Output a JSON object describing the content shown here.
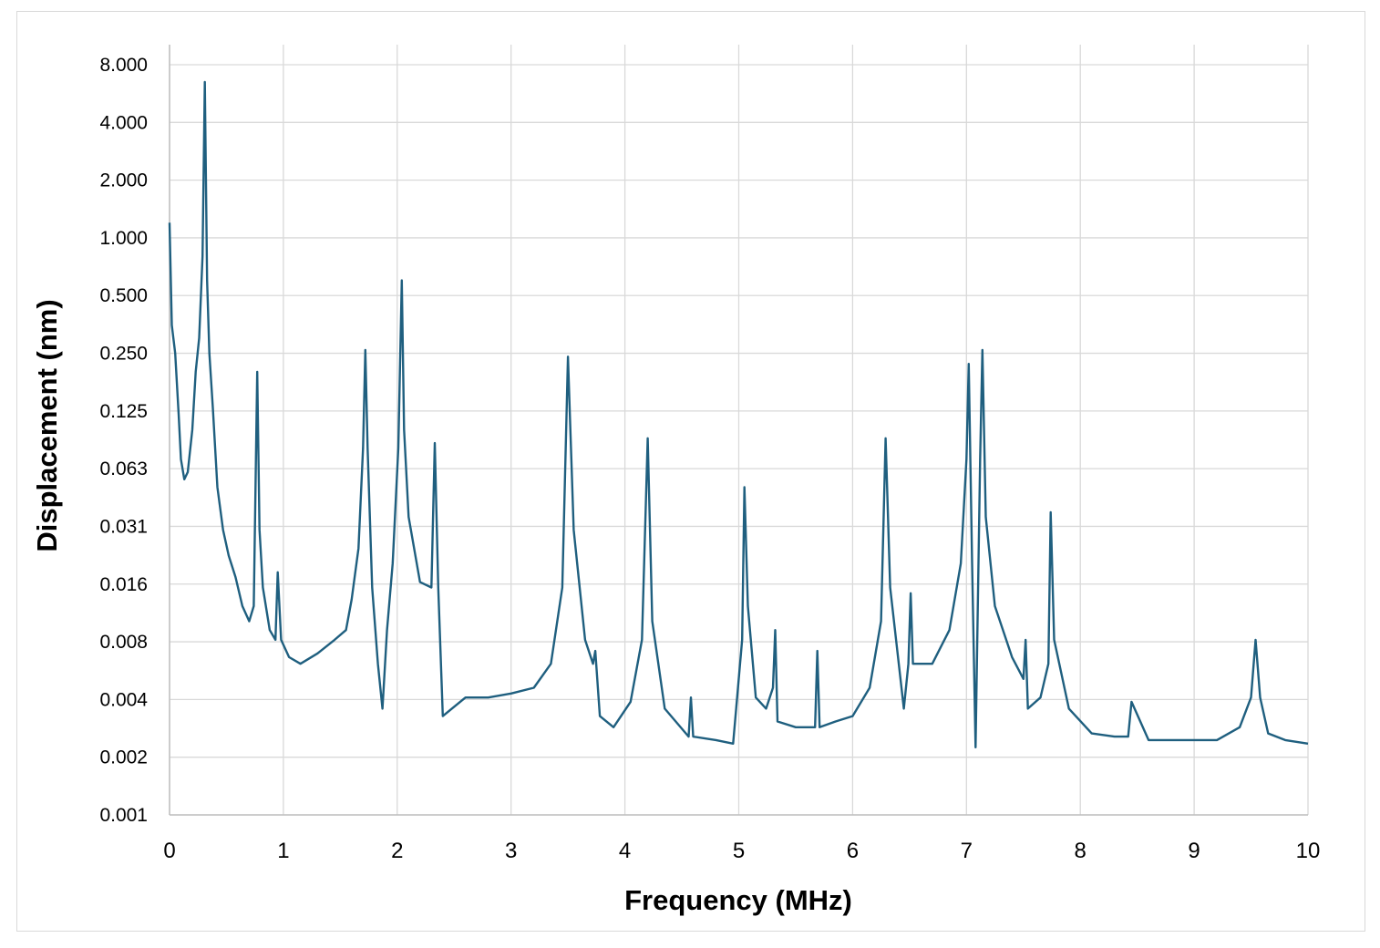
{
  "chart_data": {
    "type": "line",
    "title": "",
    "xlabel": "Frequency (MHz)",
    "ylabel": "Displacement (nm)",
    "x_scale": "linear",
    "y_scale": "log2",
    "xlim": [
      0,
      10
    ],
    "ylim": [
      0.001,
      8.0
    ],
    "x_ticks": [
      "0",
      "1",
      "2",
      "3",
      "4",
      "5",
      "6",
      "7",
      "8",
      "9",
      "10"
    ],
    "y_ticks": [
      "8.000",
      "4.000",
      "2.000",
      "1.000",
      "0.500",
      "0.250",
      "0.125",
      "0.063",
      "0.031",
      "0.016",
      "0.008",
      "0.004",
      "0.002",
      "0.001"
    ],
    "y_tick_values": [
      8.0,
      4.0,
      2.0,
      1.0,
      0.5,
      0.25,
      0.125,
      0.0625,
      0.03125,
      0.015625,
      0.0078125,
      0.00390625,
      0.001953125,
      0.0009765625
    ],
    "grid": true,
    "legend": "none",
    "line_color": "#1f5f7f",
    "series": [
      {
        "name": "",
        "x": [
          0.0,
          0.02,
          0.05,
          0.08,
          0.1,
          0.13,
          0.16,
          0.2,
          0.23,
          0.26,
          0.29,
          0.31,
          0.33,
          0.35,
          0.38,
          0.42,
          0.47,
          0.52,
          0.58,
          0.64,
          0.7,
          0.74,
          0.77,
          0.79,
          0.82,
          0.88,
          0.93,
          0.95,
          0.98,
          1.05,
          1.15,
          1.3,
          1.45,
          1.55,
          1.6,
          1.66,
          1.7,
          1.72,
          1.74,
          1.78,
          1.83,
          1.87,
          1.91,
          1.96,
          2.01,
          2.04,
          2.06,
          2.1,
          2.2,
          2.3,
          2.33,
          2.36,
          2.4,
          2.6,
          2.8,
          3.0,
          3.2,
          3.35,
          3.45,
          3.5,
          3.55,
          3.65,
          3.72,
          3.74,
          3.78,
          3.9,
          4.05,
          4.15,
          4.2,
          4.24,
          4.35,
          4.56,
          4.58,
          4.6,
          4.8,
          4.95,
          5.03,
          5.05,
          5.08,
          5.15,
          5.24,
          5.3,
          5.32,
          5.34,
          5.5,
          5.67,
          5.69,
          5.71,
          5.85,
          6.0,
          6.15,
          6.25,
          6.29,
          6.33,
          6.45,
          6.49,
          6.51,
          6.53,
          6.7,
          6.85,
          6.95,
          7.0,
          7.02,
          7.05,
          7.08,
          7.12,
          7.14,
          7.17,
          7.25,
          7.4,
          7.5,
          7.52,
          7.54,
          7.65,
          7.72,
          7.74,
          7.77,
          7.9,
          8.1,
          8.3,
          8.42,
          8.45,
          8.6,
          8.8,
          9.0,
          9.2,
          9.4,
          9.5,
          9.54,
          9.58,
          9.65,
          9.8,
          10.0
        ],
        "y": [
          1.2,
          0.35,
          0.25,
          0.12,
          0.07,
          0.055,
          0.06,
          0.1,
          0.2,
          0.3,
          0.8,
          6.5,
          0.6,
          0.25,
          0.13,
          0.05,
          0.03,
          0.022,
          0.017,
          0.012,
          0.01,
          0.012,
          0.2,
          0.03,
          0.015,
          0.009,
          0.008,
          0.018,
          0.008,
          0.0065,
          0.006,
          0.0068,
          0.008,
          0.009,
          0.013,
          0.024,
          0.08,
          0.26,
          0.08,
          0.015,
          0.006,
          0.0035,
          0.009,
          0.02,
          0.08,
          0.6,
          0.1,
          0.035,
          0.016,
          0.015,
          0.085,
          0.015,
          0.0032,
          0.004,
          0.004,
          0.0042,
          0.0045,
          0.006,
          0.015,
          0.24,
          0.03,
          0.008,
          0.006,
          0.007,
          0.0032,
          0.0028,
          0.0038,
          0.008,
          0.09,
          0.01,
          0.0035,
          0.0025,
          0.004,
          0.0025,
          0.0024,
          0.0023,
          0.008,
          0.05,
          0.012,
          0.004,
          0.0035,
          0.0045,
          0.009,
          0.003,
          0.0028,
          0.0028,
          0.007,
          0.0028,
          0.003,
          0.0032,
          0.0045,
          0.01,
          0.09,
          0.015,
          0.0035,
          0.006,
          0.014,
          0.006,
          0.006,
          0.009,
          0.02,
          0.07,
          0.22,
          0.02,
          0.0022,
          0.07,
          0.26,
          0.035,
          0.012,
          0.0065,
          0.005,
          0.008,
          0.0035,
          0.004,
          0.006,
          0.037,
          0.008,
          0.0035,
          0.0026,
          0.0025,
          0.0025,
          0.0038,
          0.0024,
          0.0024,
          0.0024,
          0.0024,
          0.0028,
          0.004,
          0.008,
          0.004,
          0.0026,
          0.0024,
          0.0023
        ]
      }
    ]
  }
}
